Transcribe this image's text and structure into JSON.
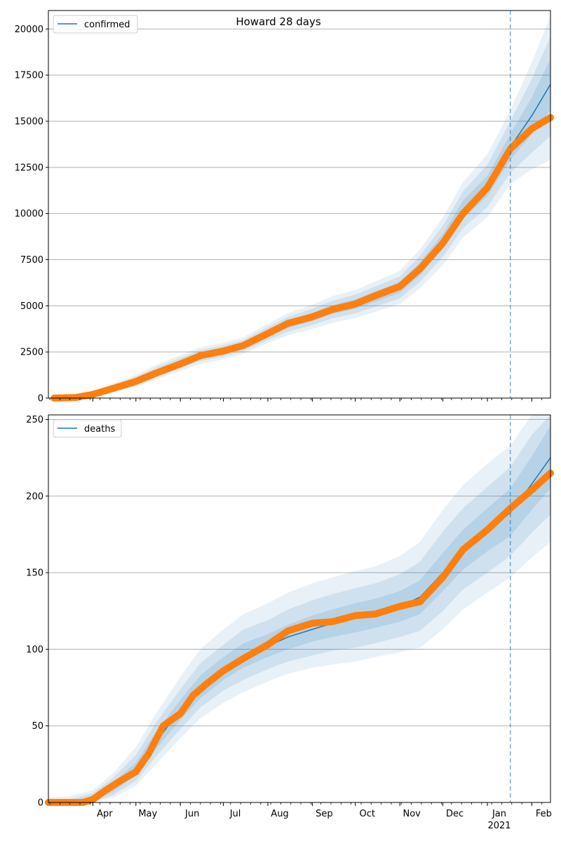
{
  "colors": {
    "model_line": "#1f77b4",
    "observed_points": "#ff7f0e",
    "band": "#1f77b4",
    "grid": "#b0b0b0",
    "forecast_line": "#1f77b4"
  },
  "chart_data": [
    {
      "type": "line",
      "title": "Howard 28 days",
      "xlabel": "",
      "ylabel": "",
      "legend": {
        "label": "confirmed",
        "placement": "top-left"
      },
      "x_range": [
        "2020-03-01",
        "2021-02-14"
      ],
      "ylim": [
        0,
        21000
      ],
      "y_ticks": [
        0,
        2500,
        5000,
        7500,
        10000,
        12500,
        15000,
        17500,
        20000
      ],
      "y_tick_labels": [
        "0",
        "2500",
        "5000",
        "7500",
        "10000",
        "12500",
        "15000",
        "17500",
        "20000"
      ],
      "grid": "y",
      "forecast_start": "2021-01-17",
      "series": [
        {
          "name": "confirmed",
          "kind": "model",
          "x": [
            "2020-03-05",
            "2020-03-20",
            "2020-04-01",
            "2020-04-15",
            "2020-05-01",
            "2020-05-15",
            "2020-06-01",
            "2020-06-15",
            "2020-07-01",
            "2020-07-15",
            "2020-08-01",
            "2020-08-15",
            "2020-09-01",
            "2020-09-15",
            "2020-10-01",
            "2020-10-15",
            "2020-11-01",
            "2020-11-15",
            "2020-12-01",
            "2020-12-15",
            "2021-01-01",
            "2021-01-17",
            "2021-02-01",
            "2021-02-14"
          ],
          "values": [
            0,
            30,
            200,
            550,
            950,
            1400,
            1900,
            2300,
            2550,
            2850,
            3500,
            4000,
            4400,
            4800,
            5100,
            5500,
            6000,
            7000,
            8500,
            10200,
            11500,
            13600,
            15300,
            17000
          ],
          "band_1": [
            [
              0,
              0
            ],
            [
              20,
              40
            ],
            [
              160,
              240
            ],
            [
              480,
              620
            ],
            [
              860,
              1040
            ],
            [
              1280,
              1520
            ],
            [
              1760,
              2040
            ],
            [
              2150,
              2450
            ],
            [
              2400,
              2700
            ],
            [
              2700,
              3000
            ],
            [
              3320,
              3680
            ],
            [
              3800,
              4200
            ],
            [
              4180,
              4620
            ],
            [
              4560,
              5040
            ],
            [
              4840,
              5360
            ],
            [
              5220,
              5780
            ],
            [
              5700,
              6300
            ],
            [
              6650,
              7350
            ],
            [
              8100,
              8900
            ],
            [
              9700,
              10700
            ],
            [
              10950,
              12050
            ],
            [
              12900,
              14300
            ],
            [
              14300,
              16300
            ],
            [
              15600,
              18400
            ]
          ],
          "band_2": [
            [
              0,
              0
            ],
            [
              10,
              50
            ],
            [
              120,
              280
            ],
            [
              400,
              700
            ],
            [
              750,
              1150
            ],
            [
              1150,
              1650
            ],
            [
              1620,
              2180
            ],
            [
              2000,
              2600
            ],
            [
              2250,
              2850
            ],
            [
              2550,
              3150
            ],
            [
              3150,
              3850
            ],
            [
              3600,
              4400
            ],
            [
              3960,
              4840
            ],
            [
              4320,
              5280
            ],
            [
              4590,
              5610
            ],
            [
              4950,
              6050
            ],
            [
              5400,
              6600
            ],
            [
              6300,
              7700
            ],
            [
              7650,
              9350
            ],
            [
              9200,
              11200
            ],
            [
              10350,
              12650
            ],
            [
              12200,
              15000
            ],
            [
              13300,
              17300
            ],
            [
              14200,
              19600
            ]
          ],
          "band_3": [
            [
              0,
              0
            ],
            [
              0,
              60
            ],
            [
              80,
              320
            ],
            [
              320,
              780
            ],
            [
              650,
              1250
            ],
            [
              1000,
              1800
            ],
            [
              1480,
              2320
            ],
            [
              1850,
              2750
            ],
            [
              2100,
              3000
            ],
            [
              2400,
              3300
            ],
            [
              2980,
              4020
            ],
            [
              3400,
              4600
            ],
            [
              3740,
              5060
            ],
            [
              4080,
              5520
            ],
            [
              4340,
              5860
            ],
            [
              4680,
              6320
            ],
            [
              5100,
              6900
            ],
            [
              5950,
              8050
            ],
            [
              7200,
              9800
            ],
            [
              8700,
              11700
            ],
            [
              9800,
              13200
            ],
            [
              11600,
              15600
            ],
            [
              12400,
              18200
            ],
            [
              12900,
              20700
            ]
          ]
        },
        {
          "name": "observed",
          "kind": "points",
          "x": [
            "2020-03-05",
            "2020-03-20",
            "2020-04-01",
            "2020-04-15",
            "2020-05-01",
            "2020-05-15",
            "2020-06-01",
            "2020-06-15",
            "2020-07-01",
            "2020-07-15",
            "2020-08-01",
            "2020-08-15",
            "2020-09-01",
            "2020-09-15",
            "2020-10-01",
            "2020-10-15",
            "2020-11-01",
            "2020-11-15",
            "2020-12-01",
            "2020-12-15",
            "2021-01-01",
            "2021-01-17",
            "2021-02-01",
            "2021-02-14"
          ],
          "values": [
            0,
            30,
            200,
            520,
            900,
            1350,
            1850,
            2300,
            2550,
            2850,
            3500,
            4050,
            4400,
            4800,
            5100,
            5550,
            6050,
            7000,
            8400,
            10000,
            11400,
            13500,
            14600,
            15200
          ]
        }
      ],
      "x_tick_labels": [
        "Apr",
        "May",
        "Jun",
        "Jul",
        "Aug",
        "Sep",
        "Oct",
        "Nov",
        "Dec",
        "Jan",
        "Feb"
      ],
      "x_tick_sublabel": "2021"
    },
    {
      "type": "line",
      "title": "",
      "xlabel": "",
      "ylabel": "",
      "legend": {
        "label": "deaths",
        "placement": "top-left"
      },
      "x_range": [
        "2020-03-01",
        "2021-02-14"
      ],
      "ylim": [
        0,
        253
      ],
      "y_ticks": [
        0,
        50,
        100,
        150,
        200,
        250
      ],
      "y_tick_labels": [
        "0",
        "50",
        "100",
        "150",
        "200",
        "250"
      ],
      "grid": "y",
      "forecast_start": "2021-01-17",
      "series": [
        {
          "name": "deaths",
          "kind": "model",
          "x": [
            "2020-03-01",
            "2020-03-15",
            "2020-04-01",
            "2020-04-15",
            "2020-05-01",
            "2020-05-15",
            "2020-06-01",
            "2020-06-15",
            "2020-07-01",
            "2020-07-15",
            "2020-08-01",
            "2020-08-15",
            "2020-09-01",
            "2020-09-15",
            "2020-10-01",
            "2020-10-15",
            "2020-11-01",
            "2020-11-15",
            "2020-12-01",
            "2020-12-15",
            "2021-01-01",
            "2021-01-17",
            "2021-02-01",
            "2021-02-14"
          ],
          "values": [
            0,
            0,
            2,
            10,
            22,
            40,
            60,
            75,
            87,
            95,
            102,
            108,
            113,
            117,
            120,
            123,
            128,
            134,
            150,
            165,
            178,
            189,
            208,
            225
          ],
          "band_1": [
            [
              0,
              0
            ],
            [
              0,
              1
            ],
            [
              1,
              4
            ],
            [
              7,
              13
            ],
            [
              18,
              26
            ],
            [
              35,
              46
            ],
            [
              54,
              67
            ],
            [
              68,
              83
            ],
            [
              80,
              95
            ],
            [
              88,
              104
            ],
            [
              95,
              110
            ],
            [
              100,
              116
            ],
            [
              105,
              122
            ],
            [
              108,
              126
            ],
            [
              111,
              130
            ],
            [
              114,
              133
            ],
            [
              118,
              138
            ],
            [
              123,
              145
            ],
            [
              138,
              163
            ],
            [
              152,
              178
            ],
            [
              164,
              192
            ],
            [
              174,
              205
            ],
            [
              191,
              226
            ],
            [
              205,
              246
            ]
          ],
          "band_2": [
            [
              0,
              1
            ],
            [
              0,
              2
            ],
            [
              0,
              6
            ],
            [
              5,
              16
            ],
            [
              14,
              31
            ],
            [
              30,
              52
            ],
            [
              48,
              74
            ],
            [
              62,
              91
            ],
            [
              73,
              103
            ],
            [
              80,
              113
            ],
            [
              87,
              119
            ],
            [
              92,
              126
            ],
            [
              96,
              132
            ],
            [
              99,
              136
            ],
            [
              101,
              140
            ],
            [
              104,
              143
            ],
            [
              108,
              149
            ],
            [
              112,
              157
            ],
            [
              125,
              177
            ],
            [
              139,
              192
            ],
            [
              150,
              206
            ],
            [
              161,
              219
            ],
            [
              176,
              240
            ],
            [
              188,
              253
            ]
          ],
          "band_3": [
            [
              0,
              3
            ],
            [
              0,
              4
            ],
            [
              0,
              8
            ],
            [
              3,
              19
            ],
            [
              11,
              36
            ],
            [
              25,
              58
            ],
            [
              42,
              82
            ],
            [
              55,
              100
            ],
            [
              65,
              113
            ],
            [
              72,
              123
            ],
            [
              79,
              130
            ],
            [
              84,
              137
            ],
            [
              88,
              143
            ],
            [
              90,
              147
            ],
            [
              92,
              151
            ],
            [
              95,
              154
            ],
            [
              98,
              161
            ],
            [
              101,
              170
            ],
            [
              113,
              191
            ],
            [
              126,
              207
            ],
            [
              137,
              221
            ],
            [
              147,
              233
            ],
            [
              160,
              253
            ],
            [
              170,
              253
            ]
          ]
        },
        {
          "name": "observed",
          "kind": "points",
          "x": [
            "2020-03-01",
            "2020-03-15",
            "2020-03-25",
            "2020-04-01",
            "2020-04-10",
            "2020-04-20",
            "2020-05-01",
            "2020-05-10",
            "2020-05-20",
            "2020-06-01",
            "2020-06-10",
            "2020-06-20",
            "2020-07-01",
            "2020-07-15",
            "2020-08-01",
            "2020-08-15",
            "2020-09-01",
            "2020-09-15",
            "2020-10-01",
            "2020-10-15",
            "2020-11-01",
            "2020-11-15",
            "2020-12-01",
            "2020-12-15",
            "2021-01-01",
            "2021-01-17",
            "2021-02-01",
            "2021-02-14"
          ],
          "values": [
            0,
            0,
            0,
            2,
            8,
            14,
            20,
            32,
            50,
            58,
            70,
            78,
            86,
            94,
            103,
            112,
            117,
            118,
            122,
            123,
            128,
            131,
            147,
            165,
            178,
            192,
            204,
            215
          ]
        }
      ],
      "x_tick_labels": [
        "Apr",
        "May",
        "Jun",
        "Jul",
        "Aug",
        "Sep",
        "Oct",
        "Nov",
        "Dec",
        "Jan",
        "Feb"
      ],
      "x_tick_sublabel": "2021"
    }
  ]
}
